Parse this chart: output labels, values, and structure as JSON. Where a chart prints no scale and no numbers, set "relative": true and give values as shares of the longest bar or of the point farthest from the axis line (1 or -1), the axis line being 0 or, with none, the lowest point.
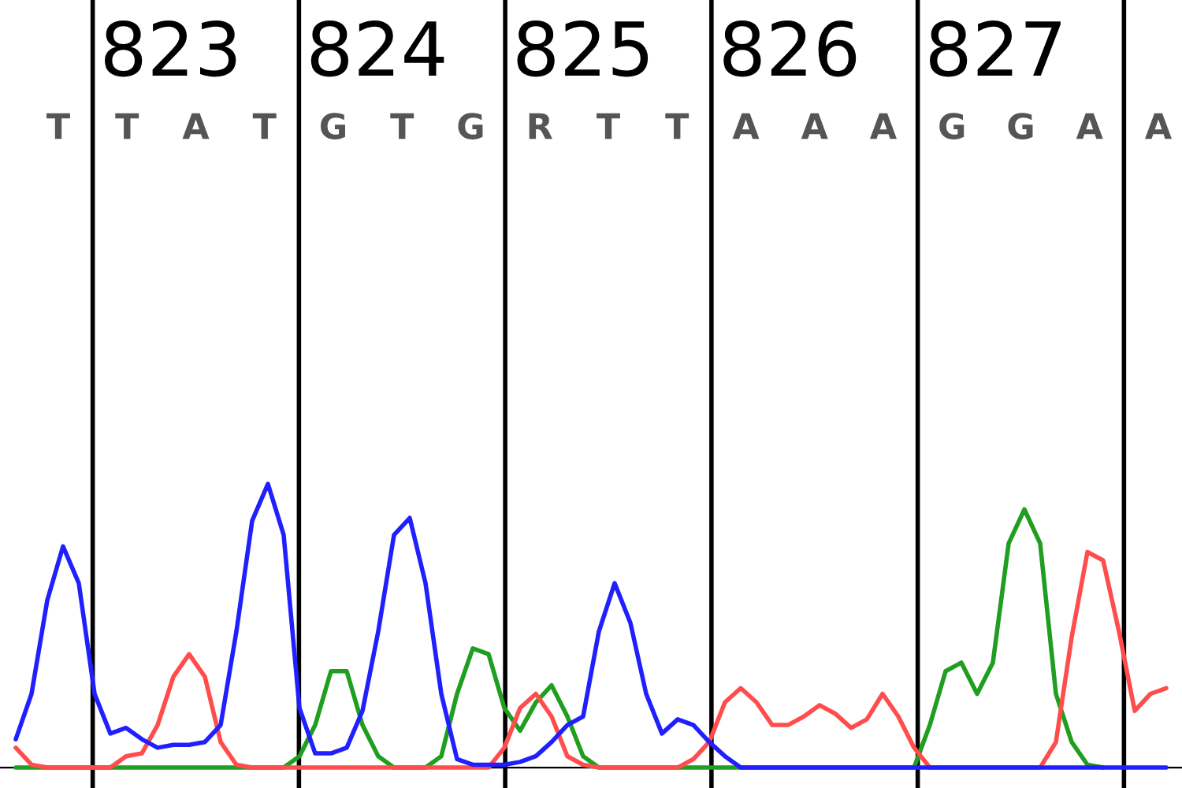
{
  "chart_data": {
    "type": "line",
    "relative": true,
    "grid": "x",
    "marker": "none",
    "line_style": "solid",
    "categories": [
      null,
      null,
      null,
      null,
      null,
      null,
      null,
      null,
      null,
      null,
      null,
      null,
      null,
      null,
      null,
      null,
      null,
      null,
      null,
      null,
      null,
      null,
      null,
      null,
      null,
      null,
      null,
      null,
      null,
      null,
      null,
      null,
      null,
      null,
      null,
      null,
      null,
      null,
      null,
      null,
      null,
      null,
      null,
      null,
      null,
      null,
      null,
      null,
      null,
      null,
      null,
      null,
      null,
      null,
      null,
      null,
      null,
      null,
      null,
      null,
      null,
      null,
      null,
      null,
      null,
      null,
      null,
      null,
      null,
      null,
      null,
      null,
      null,
      null
    ],
    "series": [
      {
        "color": "#1f9e1f",
        "values": [
          0,
          0,
          0,
          0,
          0,
          0,
          0,
          0,
          0,
          0,
          0,
          0,
          0,
          0,
          0,
          0,
          0,
          0,
          0.04,
          0.15,
          0.34,
          0.34,
          0.15,
          0.04,
          0,
          0,
          0,
          0.04,
          0.26,
          0.42,
          0.4,
          0.21,
          0.13,
          0.23,
          0.29,
          0.18,
          0.04,
          0,
          0,
          0,
          0,
          0,
          0,
          0,
          0,
          0,
          0,
          0,
          0,
          0,
          0,
          0,
          0,
          0,
          0,
          0,
          0,
          0,
          0.15,
          0.34,
          0.37,
          0.26,
          0.37,
          0.79,
          0.91,
          0.79,
          0.26,
          0.09,
          0.01,
          0,
          null,
          null,
          null,
          null
        ]
      },
      {
        "color": "#ff4d4d",
        "values": [
          0.07,
          0.01,
          0,
          0,
          0,
          0,
          0,
          0.04,
          0.05,
          0.15,
          0.32,
          0.4,
          0.32,
          0.09,
          0.01,
          0,
          0,
          0,
          0,
          0,
          0,
          0,
          0,
          0,
          0,
          0,
          0,
          0,
          0,
          0,
          0,
          0.07,
          0.21,
          0.26,
          0.18,
          0.04,
          0.01,
          0,
          0,
          0,
          0,
          0,
          0,
          0.03,
          0.09,
          0.23,
          0.28,
          0.23,
          0.15,
          0.15,
          0.18,
          0.22,
          0.19,
          0.14,
          0.17,
          0.26,
          0.18,
          0.07,
          0,
          0,
          0,
          0,
          0,
          0,
          0,
          0,
          0.09,
          0.46,
          0.76,
          0.73,
          0.48,
          0.2,
          0.26,
          0.28
        ]
      },
      {
        "color": "#2020ff",
        "values": [
          0.1,
          0.26,
          0.59,
          0.78,
          0.65,
          0.26,
          0.12,
          0.14,
          0.1,
          0.07,
          0.08,
          0.08,
          0.09,
          0.15,
          0.48,
          0.87,
          1,
          0.82,
          0.21,
          0.05,
          0.05,
          0.07,
          0.2,
          0.48,
          0.82,
          0.88,
          0.65,
          0.26,
          0.03,
          0.01,
          0.01,
          0.01,
          0.02,
          0.04,
          0.09,
          0.15,
          0.18,
          0.48,
          0.65,
          0.51,
          0.26,
          0.12,
          0.17,
          0.15,
          0.09,
          0.04,
          0,
          0,
          0,
          0,
          0,
          0,
          0,
          0,
          0,
          0,
          0,
          0,
          0,
          0,
          0,
          0,
          0,
          0,
          0,
          0,
          0,
          0,
          0,
          0,
          0,
          0,
          0,
          0
        ]
      }
    ],
    "annotations": [
      "823",
      "824",
      "825",
      "826",
      "827",
      "T",
      "T",
      "A",
      "T",
      "G",
      "T",
      "G",
      "R",
      "T",
      "T",
      "A",
      "A",
      "A",
      "G",
      "G",
      "A",
      "A"
    ]
  }
}
